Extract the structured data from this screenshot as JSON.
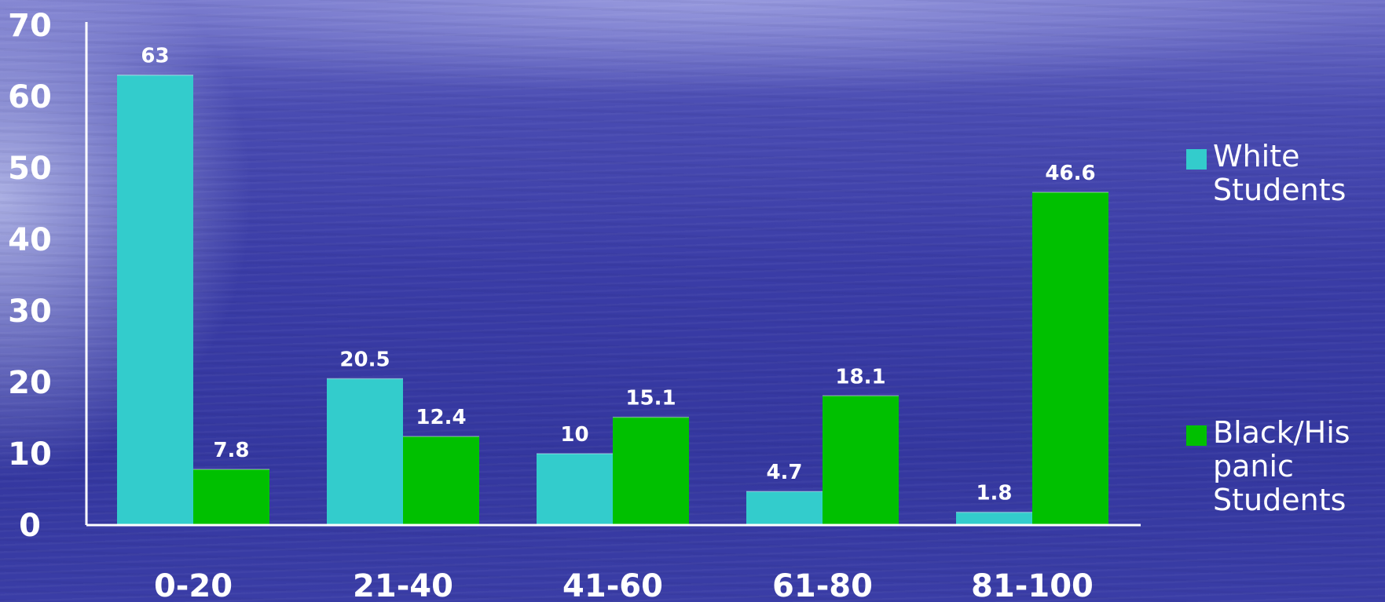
{
  "chart_data": {
    "type": "bar",
    "categories": [
      "0-20",
      "21-40",
      "41-60",
      "61-80",
      "81-100"
    ],
    "series": [
      {
        "name": "White Students",
        "values": [
          63,
          20.5,
          10,
          4.7,
          1.8
        ],
        "labels": [
          "63",
          "20.5",
          "10",
          "4.7",
          "1.8"
        ],
        "color": "#33cccc"
      },
      {
        "name": "Black/Hispanic Students",
        "values": [
          7.8,
          12.4,
          15.1,
          18.1,
          46.6
        ],
        "labels": [
          "7.8",
          "12.4",
          "15.1",
          "18.1",
          "46.6"
        ],
        "color": "#00c000"
      }
    ],
    "ylim": [
      0,
      70
    ],
    "yticks": [
      0,
      10,
      20,
      30,
      40,
      50,
      60,
      70
    ],
    "title": "",
    "xlabel": "",
    "ylabel": "",
    "grid": false,
    "legend_position": "right"
  },
  "legend": {
    "white_label_line1": "White",
    "white_label_line2": "Students",
    "black_label_line1": "Black/His",
    "black_label_line2": "panic",
    "black_label_line3": "Students"
  },
  "colors": {
    "axis": "#ffffff",
    "white_series": "#33cccc",
    "black_series": "#00c000",
    "text": "#ffffff"
  }
}
